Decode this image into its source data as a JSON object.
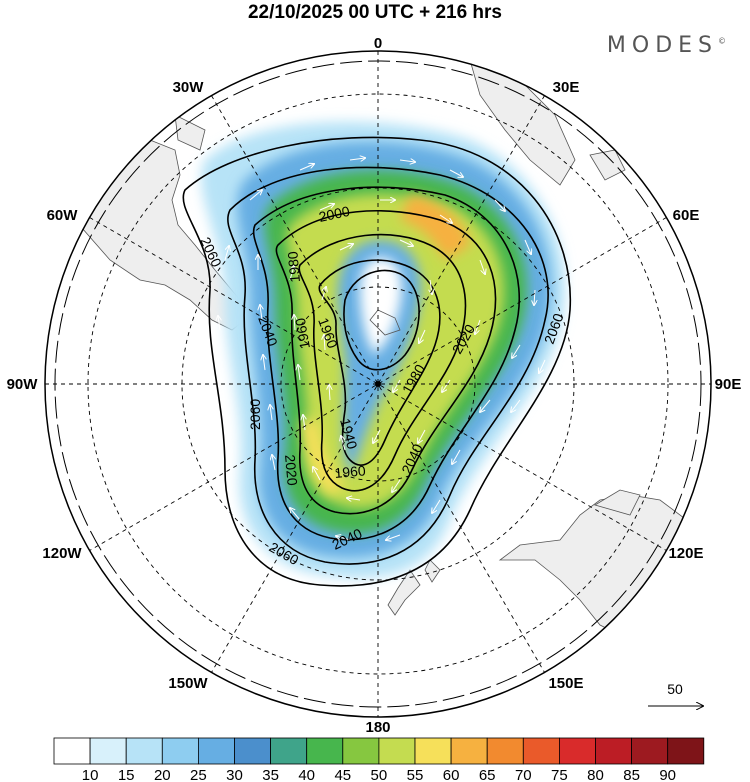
{
  "header": {
    "title": "22/10/2025  00 UTC  + 216 hrs",
    "brand": "MODES",
    "brand_mark": "©"
  },
  "map": {
    "projection": "south polar stereographic",
    "longitude_labels": [
      "0",
      "30E",
      "60E",
      "90E",
      "120E",
      "150E",
      "180",
      "150W",
      "120W",
      "90W",
      "60W",
      "30W"
    ],
    "contour_labels": [
      "2060",
      "2040",
      "1980",
      "1960",
      "1960",
      "2000",
      "1940",
      "1980",
      "2020",
      "2060",
      "2060",
      "2020",
      "2040",
      "1960",
      "2040",
      "2060"
    ],
    "vector_reference": {
      "value": "50"
    }
  },
  "colorbar": {
    "ticks": [
      "10",
      "15",
      "20",
      "25",
      "30",
      "35",
      "40",
      "45",
      "50",
      "55",
      "60",
      "65",
      "70",
      "75",
      "80",
      "85",
      "90"
    ],
    "colors": [
      "#ffffff",
      "#d8f1fb",
      "#b7e3f7",
      "#8ecdf0",
      "#66aee3",
      "#4b8fcc",
      "#3fa48a",
      "#47b64d",
      "#86c740",
      "#c4dc50",
      "#f6e05a",
      "#f6b140",
      "#f28a2f",
      "#ea5a2a",
      "#d92b2b",
      "#bc1d25",
      "#9d1a20",
      "#7e1418"
    ]
  }
}
